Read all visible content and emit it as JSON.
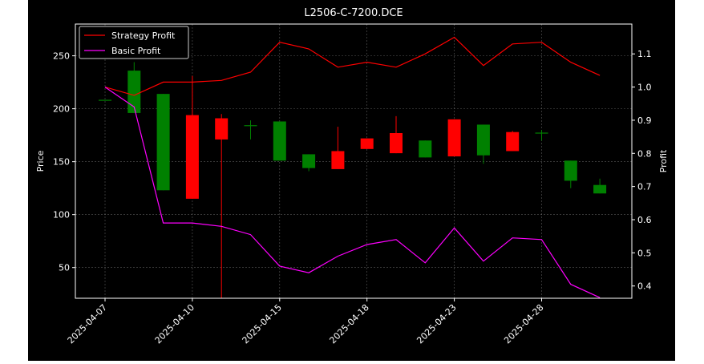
{
  "chart_data": {
    "type": "candlestick+line",
    "title": "L2506-C-7200.DCE",
    "xlabel": "",
    "ylabel_left": "Price",
    "ylabel_right": "Profit",
    "ylim_left": [
      21,
      280
    ],
    "ylim_right": [
      0.363,
      1.19
    ],
    "yticks_left": [
      "50",
      "100",
      "150",
      "200",
      "250"
    ],
    "yticks_left_values": [
      50,
      100,
      150,
      200,
      250
    ],
    "yticks_right": [
      "0.4",
      "0.5",
      "0.6",
      "0.7",
      "0.8",
      "0.9",
      "1.0",
      "1.1"
    ],
    "yticks_right_values": [
      0.4,
      0.5,
      0.6,
      0.7,
      0.8,
      0.9,
      1.0,
      1.1
    ],
    "xtick_labels": [
      "2025-04-07",
      "2025-04-10",
      "2025-04-15",
      "2025-04-18",
      "2025-04-23",
      "2025-04-28"
    ],
    "xtick_index": [
      0,
      3,
      6,
      9,
      12,
      15
    ],
    "grid": true,
    "legend_position": "top-left",
    "colors": {
      "background": "#000000",
      "up": "#008000",
      "down": "#ff0000",
      "strategy": "#ff0000",
      "basic": "#ff00ff",
      "axis": "#ffffff",
      "grid": "#808080"
    },
    "dates": [
      "2025-04-07",
      "2025-04-08",
      "2025-04-09",
      "2025-04-10",
      "2025-04-11",
      "2025-04-14",
      "2025-04-15",
      "2025-04-16",
      "2025-04-17",
      "2025-04-18",
      "2025-04-21",
      "2025-04-22",
      "2025-04-23",
      "2025-04-24",
      "2025-04-25",
      "2025-04-28",
      "2025-04-29",
      "2025-04-30"
    ],
    "candles": [
      {
        "open": 208,
        "high": 208,
        "low": 208,
        "close": 208
      },
      {
        "open": 196,
        "high": 244,
        "low": 196,
        "close": 236
      },
      {
        "open": 123,
        "high": 214,
        "low": 123,
        "close": 214
      },
      {
        "open": 194,
        "high": 231,
        "low": 115,
        "close": 115
      },
      {
        "open": 191,
        "high": 195,
        "low": 21,
        "close": 171
      },
      {
        "open": 184,
        "high": 189,
        "low": 171,
        "close": 184
      },
      {
        "open": 151,
        "high": 188,
        "low": 151,
        "close": 188
      },
      {
        "open": 144,
        "high": 157,
        "low": 141,
        "close": 157
      },
      {
        "open": 160,
        "high": 183,
        "low": 143,
        "close": 143
      },
      {
        "open": 172,
        "high": 172,
        "low": 162,
        "close": 162
      },
      {
        "open": 177,
        "high": 193,
        "low": 158,
        "close": 158
      },
      {
        "open": 154,
        "high": 170,
        "low": 154,
        "close": 170
      },
      {
        "open": 190,
        "high": 190,
        "low": 155,
        "close": 155
      },
      {
        "open": 156,
        "high": 185,
        "low": 148,
        "close": 185
      },
      {
        "open": 178,
        "high": 179,
        "low": 160,
        "close": 160
      },
      {
        "open": 177,
        "high": 180,
        "low": 170,
        "close": 177
      },
      {
        "open": 132,
        "high": 151,
        "low": 125,
        "close": 151
      },
      {
        "open": 120,
        "high": 134,
        "low": 120,
        "close": 128
      }
    ],
    "series": [
      {
        "name": "Strategy Profit",
        "axis": "right",
        "values": [
          1.0,
          0.975,
          1.015,
          1.015,
          1.02,
          1.045,
          1.135,
          1.115,
          1.06,
          1.075,
          1.06,
          1.1,
          1.15,
          1.065,
          1.13,
          1.135,
          1.075,
          1.035
        ]
      },
      {
        "name": "Basic Profit",
        "axis": "right",
        "values": [
          1.0,
          0.94,
          0.59,
          0.59,
          0.58,
          0.555,
          0.46,
          0.44,
          0.49,
          0.525,
          0.54,
          0.47,
          0.575,
          0.475,
          0.545,
          0.54,
          0.405,
          0.365
        ]
      }
    ]
  }
}
